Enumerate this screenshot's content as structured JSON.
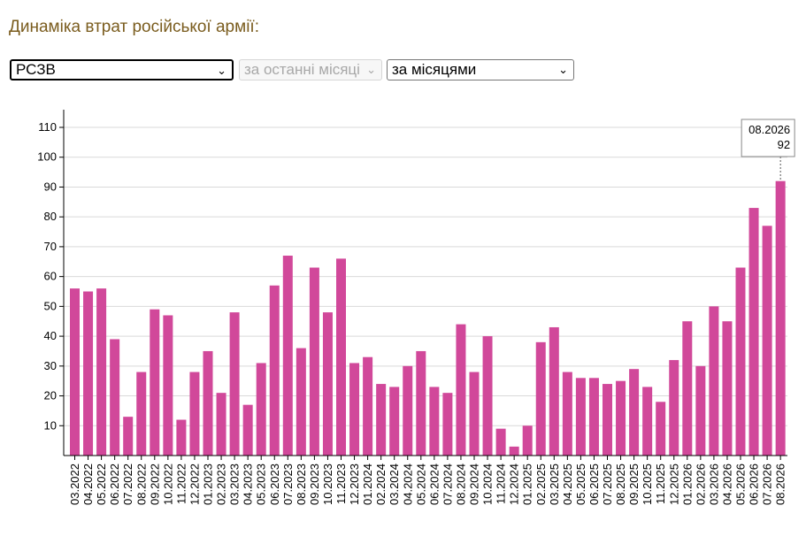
{
  "header": {
    "title": "Динаміка втрат російської армії:"
  },
  "filters": {
    "weapon": {
      "value": "РСЗВ"
    },
    "period": {
      "value": "за останні місяці"
    },
    "grouping": {
      "value": "за місяцями"
    }
  },
  "colors": {
    "bar": "#d1489a",
    "grid": "#d9d9d9",
    "axis": "#000000",
    "heading": "#7a5c1e"
  },
  "tooltip": {
    "date": "08.2026",
    "value": "92"
  },
  "chart_data": {
    "type": "bar",
    "categories": [
      "03.2022",
      "04.2022",
      "05.2022",
      "06.2022",
      "07.2022",
      "08.2022",
      "09.2022",
      "10.2022",
      "11.2022",
      "12.2022",
      "01.2023",
      "02.2023",
      "03.2023",
      "04.2023",
      "05.2023",
      "06.2023",
      "07.2023",
      "08.2023",
      "09.2023",
      "10.2023",
      "11.2023",
      "12.2023",
      "01.2024",
      "02.2024",
      "03.2024",
      "04.2024",
      "05.2024",
      "06.2024",
      "07.2024",
      "08.2024",
      "09.2024",
      "10.2024",
      "11.2024",
      "12.2024",
      "01.2025",
      "02.2025",
      "03.2025",
      "04.2025",
      "05.2025",
      "06.2025",
      "07.2025",
      "08.2025",
      "09.2025",
      "10.2025",
      "11.2025",
      "12.2025",
      "01.2026",
      "02.2026",
      "03.2026",
      "04.2026",
      "05.2026",
      "06.2026",
      "07.2026",
      "08.2026"
    ],
    "values": [
      56,
      55,
      56,
      39,
      13,
      28,
      49,
      47,
      12,
      28,
      35,
      21,
      48,
      17,
      31,
      57,
      67,
      36,
      63,
      48,
      66,
      31,
      33,
      24,
      23,
      30,
      35,
      23,
      21,
      44,
      28,
      40,
      9,
      3,
      10,
      38,
      43,
      28,
      26,
      26,
      24,
      25,
      29,
      23,
      18,
      32,
      45,
      30,
      50,
      45,
      63,
      83,
      77,
      92
    ],
    "yticks": [
      10,
      20,
      30,
      40,
      50,
      60,
      70,
      80,
      90,
      100,
      110
    ],
    "ylim": [
      0,
      115
    ],
    "grid": true,
    "highlighted": "08.2026"
  }
}
